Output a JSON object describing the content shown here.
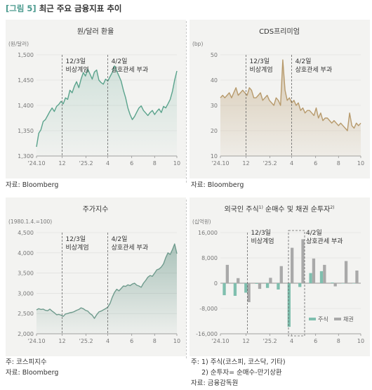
{
  "figure": {
    "tag": "[그림 5]",
    "title": "최근 주요 금융지표 추이"
  },
  "annotations": {
    "event1": [
      "12/3일",
      "비상계엄"
    ],
    "event2": [
      "4/2일",
      "상호관세 부과"
    ]
  },
  "colors": {
    "fx": "#5aa38c",
    "cds": "#b79a6c",
    "kospi": "#6f9b8d",
    "stock_bar": "#7fbfae",
    "bond_bar": "#a9a9a9"
  },
  "chart_data": [
    {
      "id": "fx",
      "type": "line",
      "title": "원/달러 환율",
      "unit": "(원/달러)",
      "ylim": [
        1300,
        1500
      ],
      "yticks": [
        1300,
        1350,
        1400,
        1450,
        1500
      ],
      "ytick_labels": [
        "1,300",
        "1,350",
        "1,400",
        "1,450",
        "1,500"
      ],
      "xticks": [
        "'24.10",
        "12",
        "'25.2",
        "4",
        "6",
        "8",
        "10"
      ],
      "x": [
        0,
        4,
        8,
        12,
        16,
        20,
        24,
        28,
        32,
        36,
        40,
        44,
        48,
        52,
        56,
        60,
        64,
        68,
        72,
        76,
        80,
        84,
        88,
        92,
        96,
        100,
        104,
        108,
        112,
        116,
        120,
        124,
        128,
        132,
        136,
        140,
        144,
        148,
        152,
        156,
        160,
        164,
        168,
        172,
        176,
        180,
        184,
        188,
        192,
        196,
        200,
        204,
        208,
        212,
        216,
        220,
        224,
        228,
        232,
        236,
        240,
        244,
        248,
        252
      ],
      "values": [
        1318,
        1345,
        1352,
        1368,
        1372,
        1380,
        1388,
        1395,
        1388,
        1398,
        1402,
        1408,
        1403,
        1415,
        1412,
        1430,
        1425,
        1438,
        1447,
        1435,
        1452,
        1465,
        1458,
        1472,
        1462,
        1452,
        1466,
        1470,
        1450,
        1445,
        1442,
        1452,
        1448,
        1457,
        1465,
        1478,
        1468,
        1458,
        1448,
        1430,
        1415,
        1395,
        1382,
        1372,
        1378,
        1387,
        1395,
        1399,
        1390,
        1385,
        1380,
        1386,
        1390,
        1382,
        1388,
        1393,
        1386,
        1398,
        1395,
        1403,
        1412,
        1428,
        1450,
        1468
      ]
    },
    {
      "id": "cds",
      "type": "area",
      "title": "CDS프리미엄",
      "unit": "(bp)",
      "ylim": [
        10,
        50
      ],
      "yticks": [
        10,
        20,
        30,
        40,
        50
      ],
      "ytick_labels": [
        "10",
        "20",
        "30",
        "40",
        "50"
      ],
      "xticks": [
        "'24.10",
        "12",
        "'25.2",
        "4",
        "6",
        "8",
        "10"
      ],
      "x": [
        0,
        4,
        8,
        12,
        16,
        20,
        24,
        28,
        32,
        36,
        40,
        44,
        48,
        52,
        56,
        60,
        64,
        68,
        72,
        76,
        80,
        84,
        88,
        92,
        96,
        100,
        104,
        108,
        112,
        116,
        120,
        124,
        128,
        132,
        136,
        140,
        144,
        148,
        152,
        156,
        160,
        164,
        168,
        172,
        176,
        180,
        184,
        188,
        192,
        196,
        200,
        204,
        208,
        212,
        216,
        220,
        224,
        228,
        232,
        236,
        240,
        244,
        248,
        252
      ],
      "values": [
        33,
        34,
        33,
        34,
        35,
        33,
        35,
        37,
        34,
        35,
        36,
        35,
        34,
        37,
        36,
        33,
        33,
        34,
        35,
        32,
        33,
        34,
        32,
        31,
        30,
        33,
        32,
        30,
        48,
        36,
        32,
        33,
        31,
        32,
        30,
        31,
        28,
        29,
        27,
        28,
        28,
        27,
        26,
        29,
        25,
        27,
        24,
        25,
        25,
        24,
        23,
        24,
        23,
        22,
        23,
        22,
        21,
        20,
        27,
        22,
        21,
        23,
        22,
        23
      ]
    },
    {
      "id": "kospi",
      "type": "area",
      "title": "주가지수",
      "unit": "(1980.1.4.=100)",
      "ylim": [
        2000,
        4500
      ],
      "yticks": [
        2000,
        2500,
        3000,
        3500,
        4000,
        4500
      ],
      "ytick_labels": [
        "2,000",
        "2,500",
        "3,000",
        "3,500",
        "4,000",
        "4,500"
      ],
      "xticks": [
        "'24.10",
        "12",
        "'25.2",
        "4",
        "6",
        "8",
        "10"
      ],
      "x": [
        0,
        4,
        8,
        12,
        16,
        20,
        24,
        28,
        32,
        36,
        40,
        44,
        48,
        52,
        56,
        60,
        64,
        68,
        72,
        76,
        80,
        84,
        88,
        92,
        96,
        100,
        104,
        108,
        112,
        116,
        120,
        124,
        128,
        132,
        136,
        140,
        144,
        148,
        152,
        156,
        160,
        164,
        168,
        172,
        176,
        180,
        184,
        188,
        192,
        196,
        200,
        204,
        208,
        212,
        216,
        220,
        224,
        228,
        232,
        236,
        240,
        244,
        248,
        252
      ],
      "values": [
        2590,
        2620,
        2600,
        2610,
        2580,
        2570,
        2610,
        2560,
        2520,
        2470,
        2480,
        2460,
        2430,
        2490,
        2500,
        2520,
        2530,
        2550,
        2580,
        2600,
        2640,
        2620,
        2580,
        2560,
        2500,
        2460,
        2380,
        2470,
        2540,
        2560,
        2590,
        2620,
        2660,
        2750,
        2900,
        3020,
        3100,
        3060,
        3120,
        3180,
        3170,
        3210,
        3190,
        3230,
        3250,
        3200,
        3180,
        3150,
        3250,
        3320,
        3400,
        3440,
        3420,
        3500,
        3580,
        3600,
        3650,
        3730,
        3880,
        4000,
        3960,
        4080,
        4220,
        3980
      ]
    },
    {
      "id": "foreign",
      "type": "bar",
      "title": "외국인 주식1) 순매수 및 채권 순투자2)",
      "unit": "(십억원)",
      "ylim": [
        -16000,
        16000
      ],
      "yticks": [
        -16000,
        -8000,
        0,
        8000,
        16000
      ],
      "ytick_labels": [
        "-16,000",
        "-8,000",
        "0",
        "8,000",
        "16,000"
      ],
      "xticks": [
        "'24.10",
        "12",
        "'25.2",
        "4",
        "6",
        "8",
        "10"
      ],
      "categories": [
        "'24.10",
        "11",
        "12",
        "'25.1",
        "2",
        "3",
        "4",
        "5",
        "6",
        "7",
        "8",
        "9",
        "10"
      ],
      "series": [
        {
          "name": "주식",
          "values": [
            -3800,
            -4000,
            -3000,
            -200,
            -1500,
            -2000,
            -13800,
            -1200,
            3200,
            3800,
            200,
            -100,
            0
          ]
        },
        {
          "name": "채권",
          "values": [
            5800,
            1600,
            -6000,
            -1800,
            1700,
            5400,
            11200,
            13900,
            7800,
            5800,
            -1000,
            7000,
            4000
          ]
        }
      ],
      "legend_position": "bottom-right"
    }
  ],
  "sources": {
    "p1": [
      "자료: Bloomberg"
    ],
    "p2": [
      "자료: Bloomberg"
    ],
    "p3": [
      "주: 코스피지수",
      "자료: Bloomberg"
    ],
    "p4": [
      "주: 1) 주식(코스피, 코스닥, 기타)",
      "     2) 순투자= 순매수-만기상환",
      "자료: 금융감독원"
    ]
  }
}
